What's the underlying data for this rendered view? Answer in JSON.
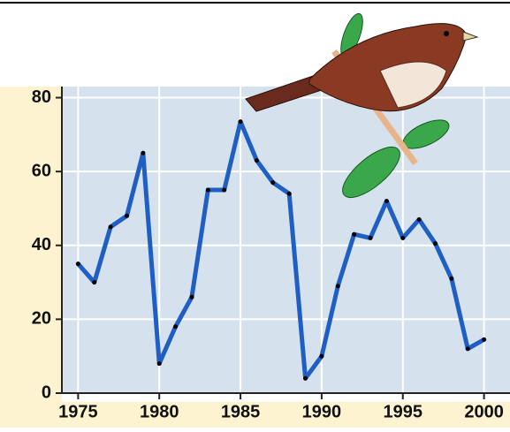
{
  "chart_data": {
    "type": "line",
    "x": [
      1975,
      1976,
      1977,
      1978,
      1979,
      1980,
      1981,
      1982,
      1983,
      1984,
      1985,
      1986,
      1987,
      1988,
      1989,
      1990,
      1991,
      1992,
      1993,
      1994,
      1995,
      1996,
      1997,
      1998,
      1999,
      2000
    ],
    "series": [
      {
        "color": "#1f5fc4",
        "values": [
          35,
          30,
          45,
          48,
          65,
          8,
          18,
          26,
          55,
          55,
          73.5,
          63,
          57,
          54,
          4,
          10,
          29,
          43,
          42,
          52,
          42,
          47,
          40.5,
          31,
          12,
          14.5
        ]
      }
    ],
    "xlim": [
      1974,
      2001.6
    ],
    "xticks": [
      1975,
      1980,
      1985,
      1990,
      1995,
      2000
    ],
    "ylim": [
      0,
      83
    ],
    "yticks": [
      0,
      20,
      40,
      60,
      80
    ],
    "grid": true
  }
}
